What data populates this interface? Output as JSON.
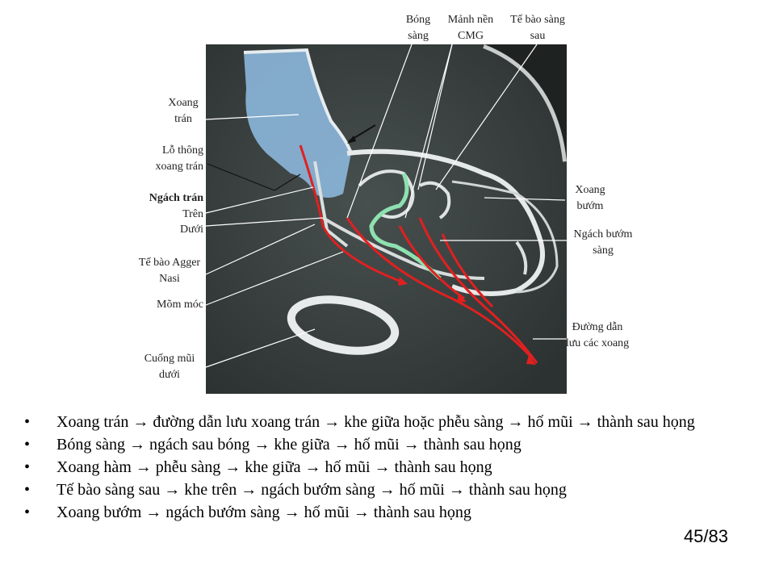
{
  "figure": {
    "labels": {
      "bong_sang": "Bóng sàng",
      "manh_nen": "Mảnh nền CMG",
      "te_bao_sang_sau": "Tế bào sàng sau",
      "xoang_tran": "Xoang trán",
      "lo_thong": "Lỗ thông xoang trán",
      "ngach_tran": "Ngách trán",
      "tren": "Trên",
      "duoi": "Dưới",
      "te_bao_agger": "Tế bào Agger Nasi",
      "mom_moc": "Mõm móc",
      "cuong_mui": "Cuống mũi dưới",
      "xoang_buom": "Xoang bướm",
      "ngach_buom_sang": "Ngách bướm sàng",
      "duong_dan_luu": "Đường dẫn lưu các xoang"
    },
    "colors": {
      "frontal_sinus": "#8ab4d8",
      "drainage_path": "#e02020",
      "ethmoid_bulla_path": "#8ee0b0"
    }
  },
  "bullets": [
    "Xoang trán → đường dẫn lưu xoang trán → khe giữa hoặc phễu sàng → hố mũi → thành sau họng",
    "Bóng sàng → ngách sau bóng → khe giữa → hố mũi → thành sau họng",
    "Xoang hàm → phễu sàng → khe giữa → hố mũi → thành sau họng",
    "Tế bào sàng sau → khe trên → ngách bướm sàng → hố mũi → thành sau họng",
    "Xoang bướm → ngách bướm sàng → hố mũi → thành sau họng"
  ],
  "bullet_symbol": "•",
  "page_number": "45/83"
}
